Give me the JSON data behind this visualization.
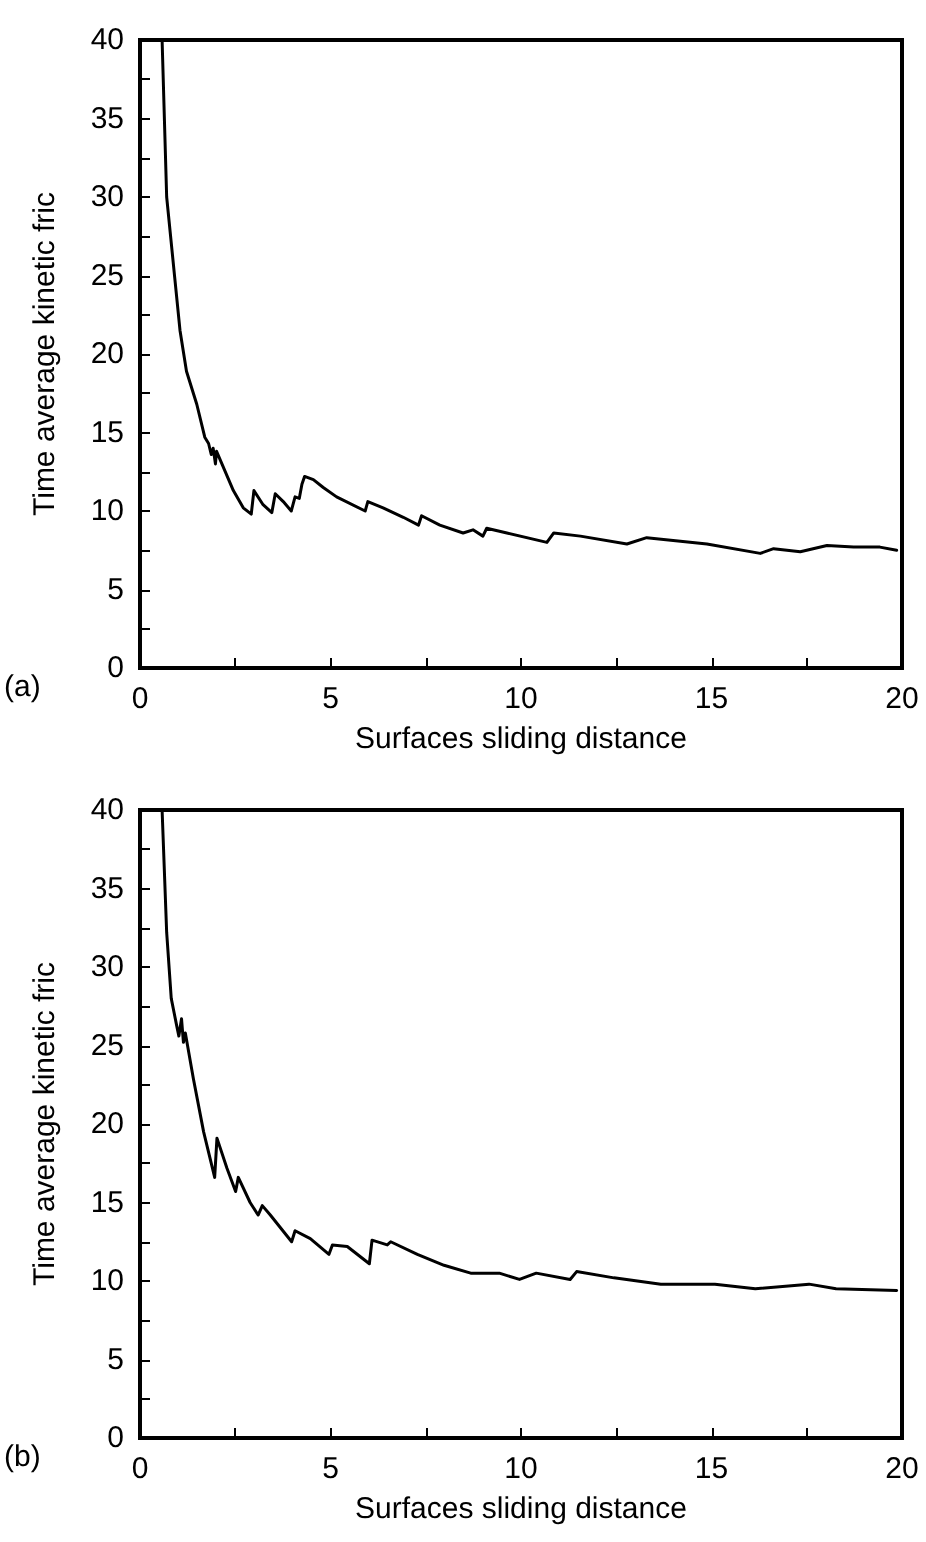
{
  "chart_data": [
    {
      "type": "line",
      "xlabel": "Surfaces sliding distance",
      "ylabel": "Time average kinetic fric",
      "annotations": [
        "(a)"
      ],
      "xlim": [
        0,
        20
      ],
      "ylim": [
        0,
        40
      ],
      "xticks": [
        0,
        {
          "value": 2.5,
          "label": null
        },
        5,
        {
          "value": 7.5,
          "label": null
        },
        10,
        {
          "value": 12.5,
          "label": null
        },
        15,
        {
          "value": 17.5,
          "label": null
        },
        20
      ],
      "yticks": [
        0,
        {
          "value": 2.5,
          "label": null
        },
        5,
        {
          "value": 7.5,
          "label": null
        },
        10,
        {
          "value": 12.5,
          "label": null
        },
        15,
        {
          "value": 17.5,
          "label": null
        },
        20,
        {
          "value": 22.5,
          "label": null
        },
        25,
        {
          "value": 27.5,
          "label": null
        },
        30,
        {
          "value": 32.5,
          "label": null
        },
        35,
        {
          "value": 37.5,
          "label": null
        },
        40
      ],
      "grid": false,
      "marker": "none",
      "line_style": "solid",
      "series": [
        {
          "color": "#000000",
          "x": [
            0.58,
            0.7,
            0.91,
            1.05,
            1.22,
            1.49,
            1.7,
            1.8,
            1.87,
            1.92,
            1.98,
            2.01,
            2.45,
            2.71,
            2.92,
            2.99,
            3.23,
            3.46,
            3.55,
            3.76,
            3.97,
            4.07,
            4.18,
            4.25,
            4.32,
            4.55,
            4.81,
            5.16,
            5.91,
            5.98,
            6.38,
            6.91,
            7.31,
            7.39,
            7.87,
            8.48,
            8.74,
            9.0,
            9.1,
            9.63,
            10.68,
            10.86,
            11.56,
            12.78,
            13.3,
            14.88,
            16.28,
            16.63,
            17.33,
            18.03,
            18.73,
            19.42,
            19.86
          ],
          "values": [
            40,
            30,
            24.9,
            21.5,
            18.9,
            16.8,
            14.7,
            14.3,
            13.6,
            14.0,
            13.0,
            13.8,
            11.3,
            10.2,
            9.8,
            11.3,
            10.4,
            9.9,
            11.1,
            10.6,
            10.0,
            10.9,
            10.8,
            11.7,
            12.2,
            12.0,
            11.5,
            10.9,
            10.0,
            10.6,
            10.2,
            9.6,
            9.1,
            9.7,
            9.1,
            8.6,
            8.8,
            8.4,
            8.9,
            8.6,
            8.0,
            8.6,
            8.4,
            7.9,
            8.3,
            7.9,
            7.3,
            7.6,
            7.4,
            7.8,
            7.7,
            7.7,
            7.5
          ]
        }
      ]
    },
    {
      "type": "line",
      "xlabel": "Surfaces sliding distance",
      "ylabel": "Time average kinetic fric",
      "annotations": [
        "(b)"
      ],
      "xlim": [
        0,
        20
      ],
      "ylim": [
        0,
        40
      ],
      "xticks": [
        0,
        {
          "value": 2.5,
          "label": null
        },
        5,
        {
          "value": 7.5,
          "label": null
        },
        10,
        {
          "value": 12.5,
          "label": null
        },
        15,
        {
          "value": 17.5,
          "label": null
        },
        20
      ],
      "yticks": [
        0,
        {
          "value": 2.5,
          "label": null
        },
        5,
        {
          "value": 7.5,
          "label": null
        },
        10,
        {
          "value": 12.5,
          "label": null
        },
        15,
        {
          "value": 17.5,
          "label": null
        },
        20,
        {
          "value": 22.5,
          "label": null
        },
        25,
        {
          "value": 27.5,
          "label": null
        },
        30,
        {
          "value": 32.5,
          "label": null
        },
        35,
        {
          "value": 37.5,
          "label": null
        },
        40
      ],
      "grid": false,
      "marker": "none",
      "line_style": "solid",
      "series": [
        {
          "color": "#000000",
          "x": [
            0.58,
            0.7,
            0.82,
            0.96,
            1.02,
            1.09,
            1.14,
            1.19,
            1.4,
            1.67,
            1.96,
            2.02,
            2.28,
            2.51,
            2.58,
            2.89,
            3.1,
            3.21,
            3.42,
            3.98,
            4.07,
            4.47,
            4.96,
            5.05,
            5.44,
            6.02,
            6.09,
            6.49,
            6.58,
            7.28,
            7.98,
            8.68,
            9.43,
            9.96,
            10.4,
            11.29,
            11.46,
            12.44,
            13.67,
            15.09,
            16.15,
            17.56,
            18.27,
            19.86
          ],
          "values": [
            40,
            32.2,
            28,
            26.3,
            25.6,
            26.7,
            25.2,
            25.8,
            22.9,
            19.5,
            16.6,
            19.1,
            17.2,
            15.7,
            16.6,
            15.0,
            14.2,
            14.8,
            14.2,
            12.5,
            13.2,
            12.7,
            11.7,
            12.3,
            12.2,
            11.1,
            12.6,
            12.3,
            12.5,
            11.7,
            11.0,
            10.5,
            10.5,
            10.1,
            10.5,
            10.1,
            10.6,
            10.2,
            9.8,
            9.8,
            9.5,
            9.8,
            9.5,
            9.4
          ]
        }
      ]
    }
  ]
}
